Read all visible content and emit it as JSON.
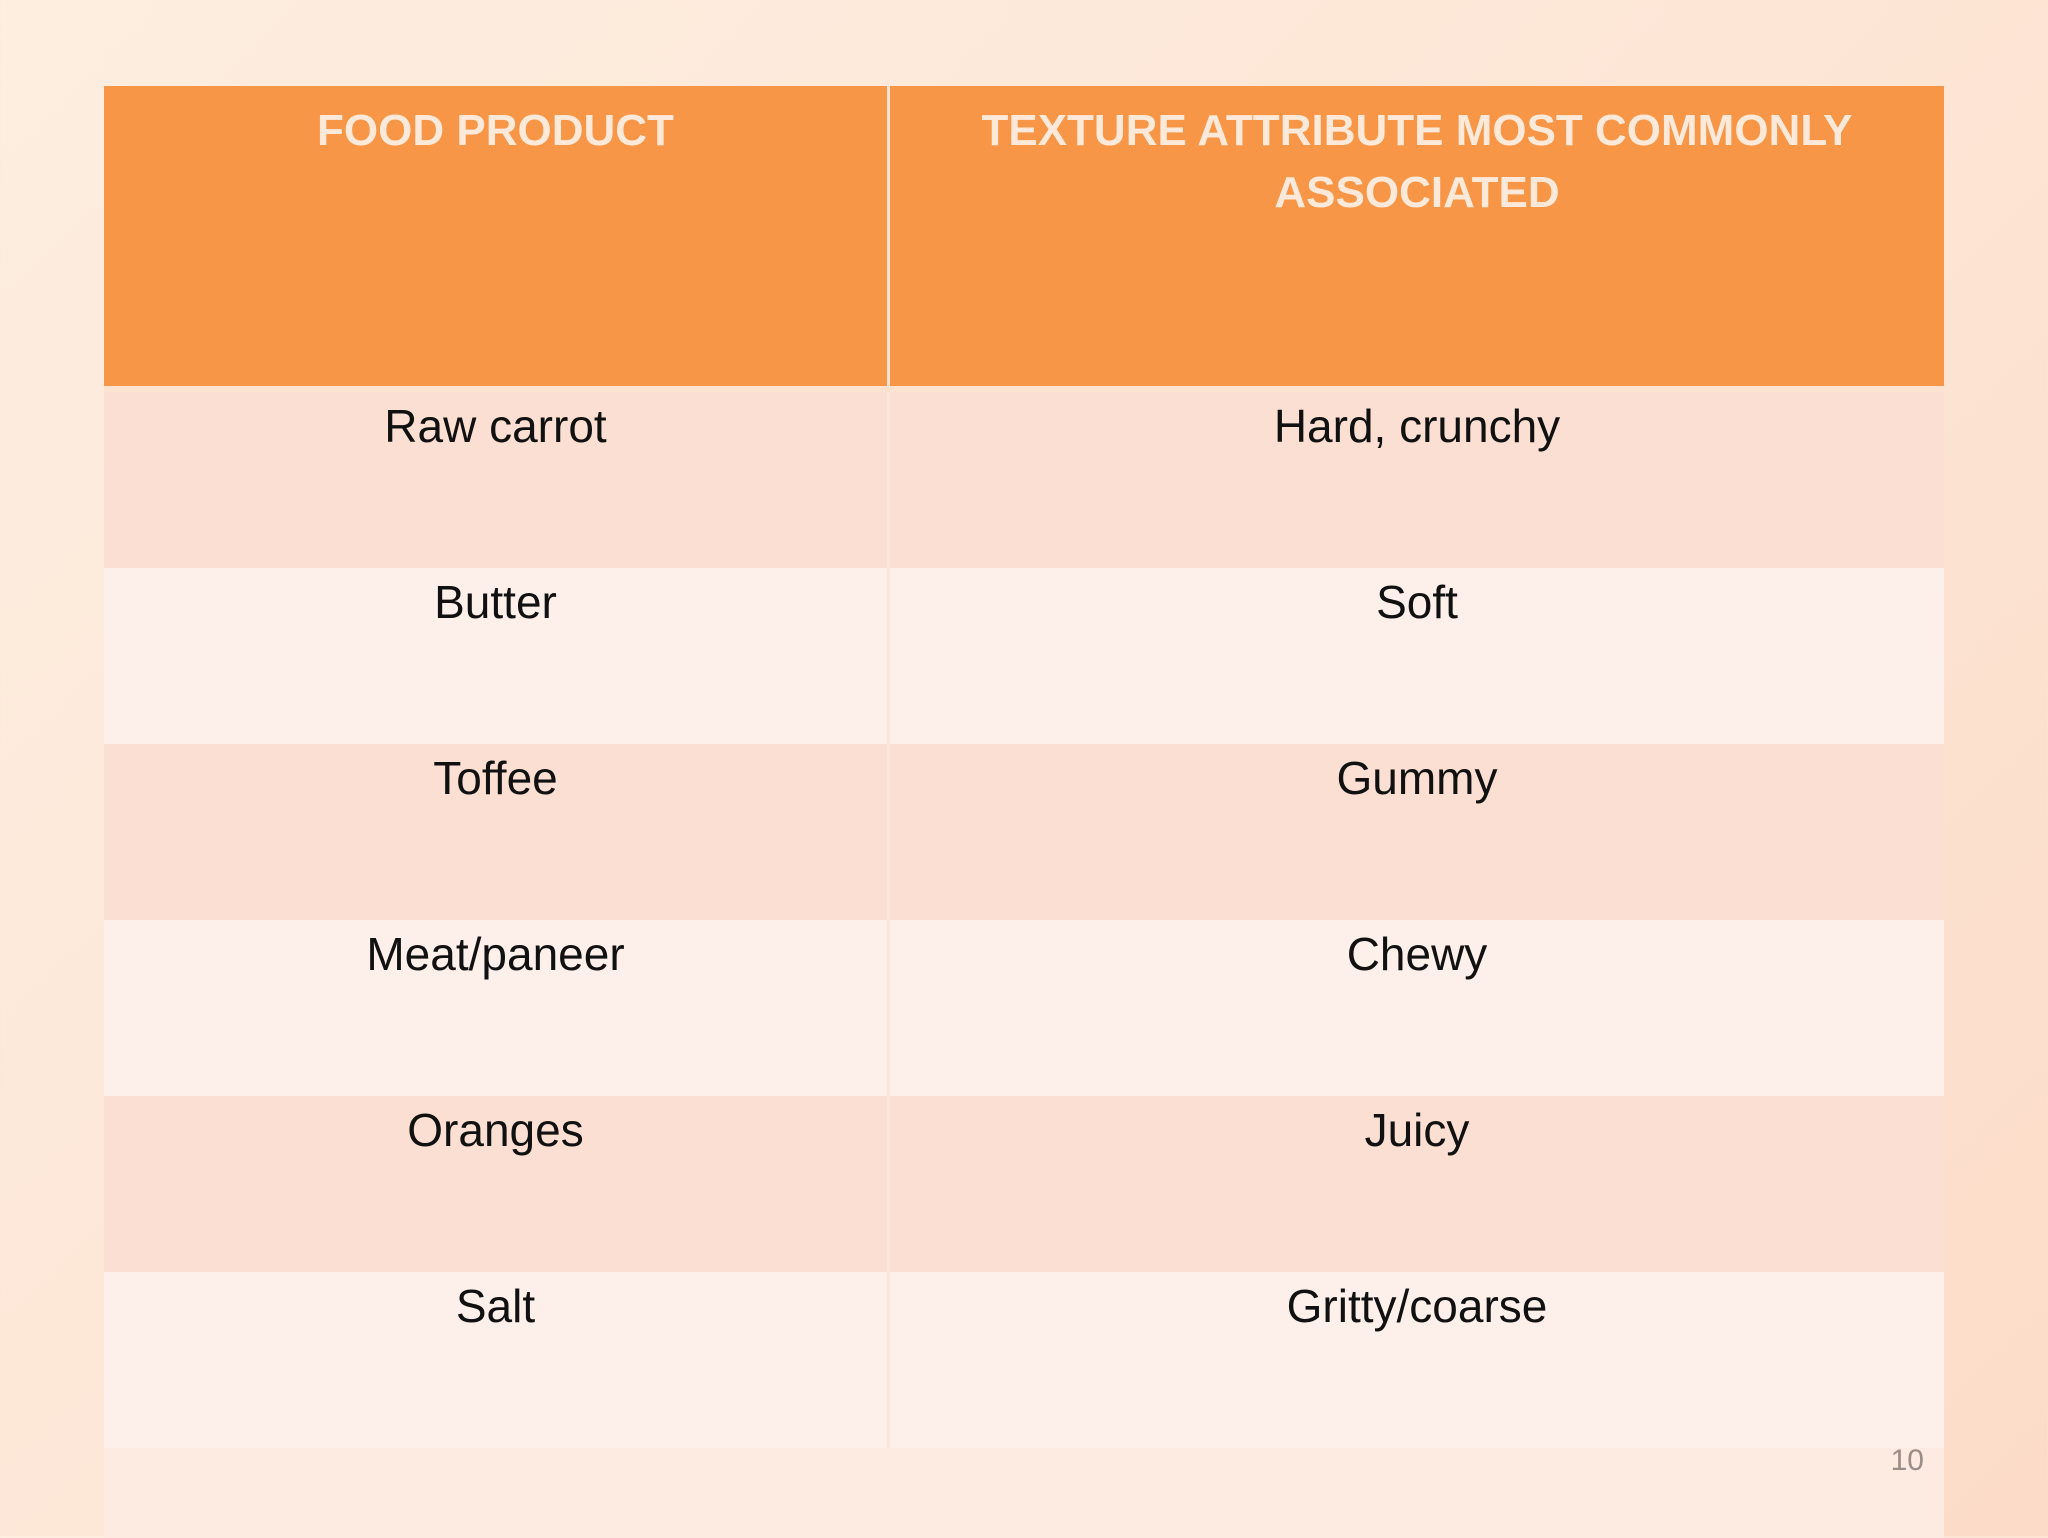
{
  "table": {
    "headers": [
      "FOOD PRODUCT",
      "TEXTURE ATTRIBUTE MOST COMMONLY ASSOCIATED"
    ],
    "rows": [
      [
        "Raw carrot",
        "Hard, crunchy"
      ],
      [
        "Butter",
        "Soft"
      ],
      [
        "Toffee",
        "Gummy"
      ],
      [
        "Meat/paneer",
        "Chewy"
      ],
      [
        "Oranges",
        "Juicy"
      ],
      [
        "Salt",
        "Gritty/coarse"
      ]
    ]
  },
  "page_number": "10",
  "colors": {
    "header_background": "#f79646",
    "header_text": "#fde9d9",
    "row_odd": "#fbdfd2",
    "row_even": "#fdefea"
  }
}
